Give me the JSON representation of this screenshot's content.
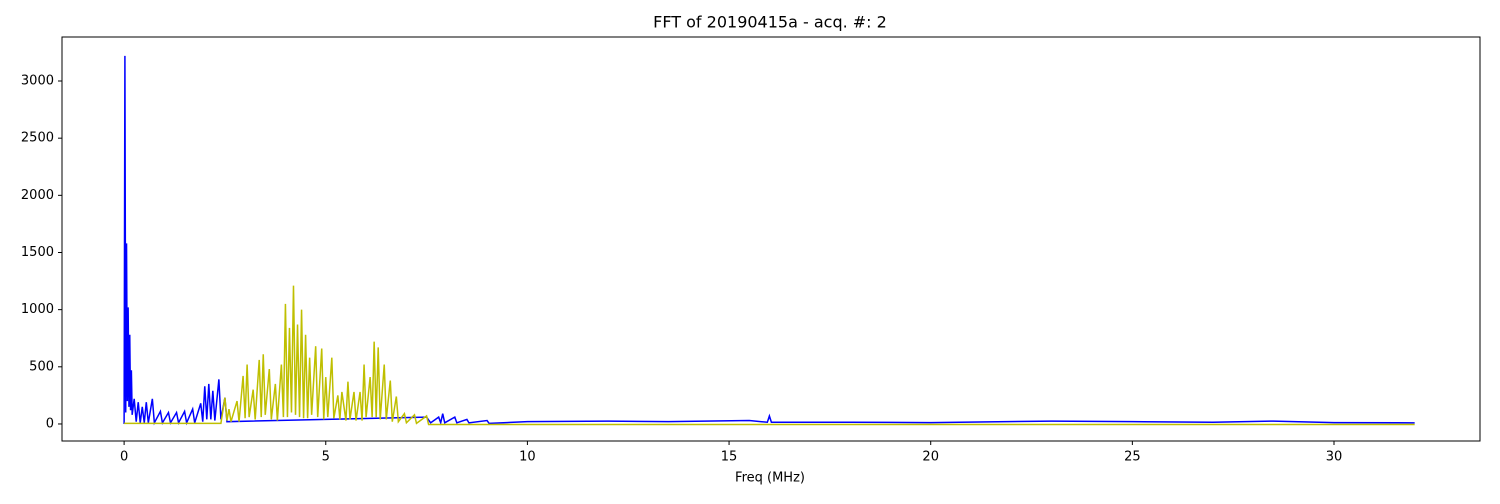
{
  "chart_data": {
    "type": "line",
    "title": "FFT of 20190415a - acq. #: 2",
    "x_label": "Freq (MHz)",
    "xlim": [
      -1.54,
      33.62
    ],
    "ylim": [
      -149,
      3385
    ],
    "xticks": [
      0,
      5,
      10,
      15,
      20,
      25,
      30
    ],
    "yticks": [
      0,
      500,
      1000,
      1500,
      2000,
      2500,
      3000
    ],
    "grid": false,
    "series": [
      {
        "color": "#0000ff",
        "x": [
          0,
          0.02,
          0.04,
          0.06,
          0.08,
          0.1,
          0.12,
          0.14,
          0.16,
          0.18,
          0.2,
          0.25,
          0.3,
          0.35,
          0.4,
          0.45,
          0.5,
          0.55,
          0.6,
          0.7,
          0.75,
          0.9,
          0.95,
          1.1,
          1.15,
          1.3,
          1.35,
          1.5,
          1.55,
          1.7,
          1.75,
          1.9,
          1.95,
          2.0,
          2.05,
          2.1,
          2.15,
          2.2,
          2.25,
          2.35,
          2.4,
          2.5,
          2.55,
          7.5,
          7.6,
          7.8,
          7.85,
          7.9,
          7.95,
          8.2,
          8.25,
          8.5,
          8.55,
          9,
          9.05,
          10,
          12,
          13.5,
          15.5,
          15.95,
          16,
          16.05,
          18,
          20,
          23,
          25,
          27,
          28.5,
          30,
          32
        ],
        "values": [
          0,
          3220,
          100,
          1580,
          200,
          1020,
          150,
          780,
          120,
          470,
          80,
          220,
          20,
          190,
          10,
          150,
          10,
          190,
          10,
          220,
          10,
          110,
          10,
          100,
          10,
          100,
          10,
          110,
          10,
          130,
          10,
          180,
          20,
          330,
          40,
          350,
          40,
          290,
          30,
          390,
          40,
          230,
          20,
          60,
          10,
          60,
          10,
          90,
          10,
          60,
          10,
          40,
          10,
          30,
          5,
          20,
          25,
          20,
          30,
          15,
          70,
          15,
          15,
          12,
          25,
          20,
          15,
          25,
          12,
          10
        ]
      },
      {
        "color": "#bfbf00",
        "x": [
          0,
          2.4,
          2.5,
          2.55,
          2.6,
          2.65,
          2.8,
          2.85,
          2.95,
          3.0,
          3.05,
          3.1,
          3.2,
          3.25,
          3.35,
          3.4,
          3.45,
          3.5,
          3.6,
          3.65,
          3.75,
          3.8,
          3.9,
          3.95,
          4.0,
          4.05,
          4.1,
          4.15,
          4.2,
          4.25,
          4.3,
          4.35,
          4.4,
          4.45,
          4.5,
          4.55,
          4.6,
          4.65,
          4.75,
          4.8,
          4.9,
          4.95,
          5.0,
          5.05,
          5.15,
          5.2,
          5.3,
          5.35,
          5.4,
          5.5,
          5.55,
          5.6,
          5.7,
          5.75,
          5.85,
          5.9,
          5.95,
          6.0,
          6.1,
          6.15,
          6.2,
          6.25,
          6.3,
          6.35,
          6.45,
          6.5,
          6.6,
          6.65,
          6.75,
          6.8,
          6.95,
          7.0,
          7.2,
          7.25,
          7.5,
          7.55,
          10,
          32
        ],
        "values": [
          5,
          5,
          230,
          30,
          130,
          20,
          200,
          20,
          420,
          50,
          520,
          60,
          300,
          40,
          560,
          60,
          610,
          80,
          480,
          40,
          350,
          30,
          520,
          60,
          1050,
          60,
          840,
          100,
          1210,
          80,
          870,
          60,
          1000,
          50,
          780,
          50,
          580,
          80,
          680,
          60,
          660,
          40,
          410,
          60,
          580,
          50,
          250,
          40,
          280,
          30,
          370,
          40,
          280,
          30,
          280,
          30,
          520,
          60,
          410,
          60,
          720,
          60,
          670,
          40,
          520,
          40,
          380,
          20,
          240,
          20,
          90,
          10,
          80,
          5,
          70,
          -5,
          -5,
          -5
        ]
      }
    ]
  }
}
